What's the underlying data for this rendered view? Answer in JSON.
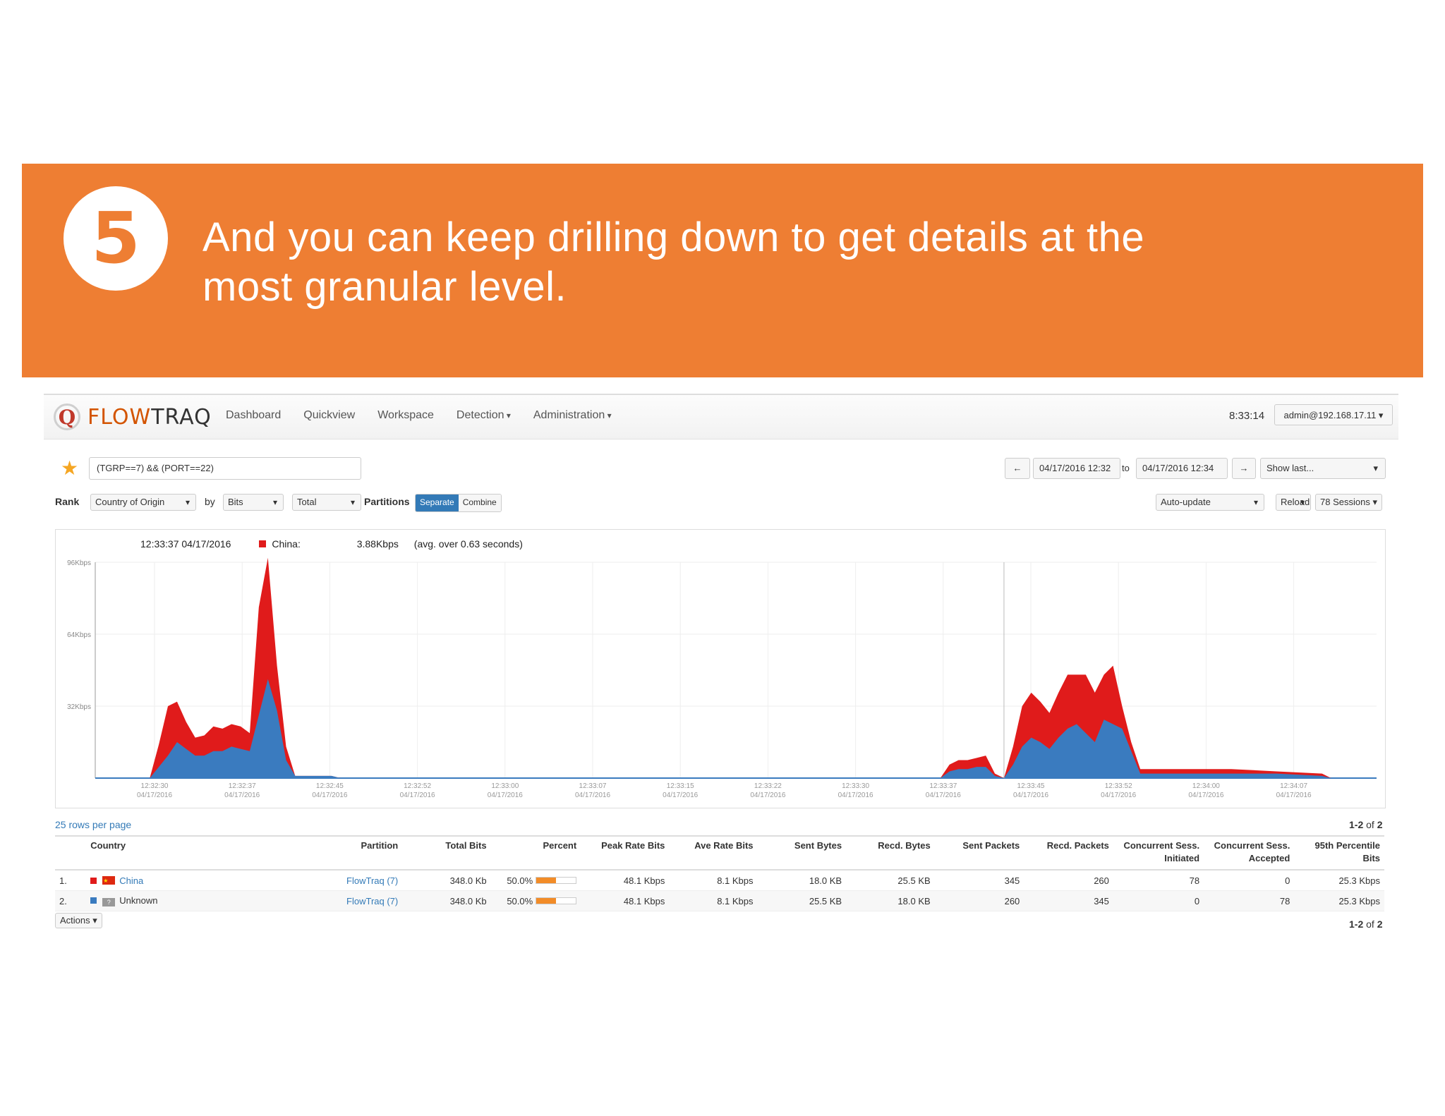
{
  "banner": {
    "step": "5",
    "text": "And you can keep drilling down to get details at the most granular level."
  },
  "app": {
    "logo": {
      "initial": "Q",
      "name_part1": "FLOW",
      "name_part2": "TRAQ"
    },
    "nav": [
      "Dashboard",
      "Quickview",
      "Workspace",
      "Detection",
      "Administration"
    ],
    "clock": "8:33:14",
    "user": "admin@192.168.17.11"
  },
  "toolbar": {
    "query": "(TGRP==7) && (PORT==22)",
    "prev": "←",
    "next": "→",
    "from": "04/17/2016 12:32",
    "to_label": "to",
    "to": "04/17/2016 12:34",
    "show_last": "Show last...",
    "rank_label": "Rank",
    "rank_value": "Country of Origin",
    "by_label": "by",
    "by_value": "Bits",
    "total_value": "Total",
    "partitions_label": "Partitions",
    "separate": "Separate",
    "combine": "Combine",
    "autoupdate": "Auto-update",
    "reload": "Reload",
    "sessions": "78 Sessions"
  },
  "chart_data": {
    "type": "area",
    "stacked": true,
    "tooltip": {
      "time": "12:33:37 04/17/2016",
      "series": "China:",
      "value": "3.88Kbps",
      "note": "(avg. over 0.63 seconds)"
    },
    "y_ticks": [
      "96Kbps",
      "64Kbps",
      "32Kbps"
    ],
    "y_tick_values": [
      96,
      64,
      32
    ],
    "ylim": [
      0,
      96
    ],
    "x_ticks": [
      [
        "12:32:30",
        "04/17/2016"
      ],
      [
        "12:32:37",
        "04/17/2016"
      ],
      [
        "12:32:45",
        "04/17/2016"
      ],
      [
        "12:32:52",
        "04/17/2016"
      ],
      [
        "12:33:00",
        "04/17/2016"
      ],
      [
        "12:33:07",
        "04/17/2016"
      ],
      [
        "12:33:15",
        "04/17/2016"
      ],
      [
        "12:33:22",
        "04/17/2016"
      ],
      [
        "12:33:30",
        "04/17/2016"
      ],
      [
        "12:33:37",
        "04/17/2016"
      ],
      [
        "12:33:45",
        "04/17/2016"
      ],
      [
        "12:33:52",
        "04/17/2016"
      ],
      [
        "12:34:00",
        "04/17/2016"
      ],
      [
        "12:34:07",
        "04/17/2016"
      ]
    ],
    "x_seconds": [
      0,
      2,
      4,
      6,
      7,
      8,
      9,
      10,
      11,
      12,
      13,
      14,
      15,
      16,
      17,
      18,
      19,
      20,
      21,
      22,
      23,
      24,
      25,
      26,
      27,
      28,
      29,
      30,
      40,
      60,
      80,
      90,
      93,
      94,
      95,
      96,
      97,
      98,
      99,
      100,
      101,
      102,
      103,
      104,
      105,
      106,
      107,
      108,
      109,
      110,
      111,
      112,
      113,
      114,
      115,
      116,
      117,
      118,
      120,
      123,
      125,
      130,
      135,
      136,
      140,
      141
    ],
    "series": [
      {
        "name": "Unknown",
        "color": "#3a7bbf",
        "values": [
          0,
          0,
          0,
          0,
          5,
          10,
          16,
          13,
          10,
          10,
          12,
          12,
          14,
          13,
          12,
          28,
          44,
          30,
          8,
          1,
          1,
          1,
          1,
          1,
          0,
          0,
          0,
          0,
          0,
          0,
          0,
          0,
          0,
          3,
          4,
          4,
          5,
          5,
          1,
          0,
          6,
          14,
          18,
          16,
          13,
          18,
          22,
          24,
          20,
          16,
          26,
          24,
          22,
          12,
          2,
          2,
          2,
          2,
          2,
          2,
          2,
          2,
          1,
          0,
          0,
          0
        ]
      },
      {
        "name": "China",
        "color": "#e01b1b",
        "values": [
          0,
          0,
          0,
          0,
          10,
          22,
          18,
          12,
          8,
          9,
          11,
          10,
          10,
          10,
          8,
          48,
          54,
          20,
          6,
          0,
          0,
          0,
          0,
          0,
          0,
          0,
          0,
          0,
          0,
          0,
          0,
          0,
          0,
          3,
          4,
          4,
          4,
          5,
          1,
          0,
          8,
          18,
          20,
          18,
          16,
          20,
          24,
          22,
          26,
          22,
          20,
          26,
          10,
          4,
          2,
          2,
          2,
          2,
          2,
          2,
          2,
          1,
          1,
          0,
          0,
          0
        ]
      }
    ]
  },
  "table": {
    "rows_per_page": "25 rows per page",
    "count": "1-2 of 2",
    "headers": [
      "",
      "Country",
      "Partition",
      "Total Bits",
      "Percent",
      "Peak Rate Bits",
      "Ave Rate Bits",
      "Sent Bytes",
      "Recd. Bytes",
      "Sent Packets",
      "Recd. Packets",
      "Concurrent Sess. Initiated",
      "Concurrent Sess. Accepted",
      "95th Percentile Bits"
    ],
    "rows": [
      {
        "idx": "1.",
        "color": "#e01b1b",
        "flag": "cn",
        "country": "China",
        "partition": "FlowTraq (7)",
        "total_bits": "348.0 Kb",
        "percent": "50.0%",
        "percent_value": 50,
        "peak": "48.1 Kbps",
        "ave": "8.1 Kbps",
        "sent_bytes": "18.0 KB",
        "recd_bytes": "25.5 KB",
        "sent_packets": "345",
        "recd_packets": "260",
        "cs_init": "78",
        "cs_acc": "0",
        "p95": "25.3 Kbps"
      },
      {
        "idx": "2.",
        "color": "#3a7bbf",
        "flag": "unknown",
        "country": "Unknown",
        "partition": "FlowTraq (7)",
        "total_bits": "348.0 Kb",
        "percent": "50.0%",
        "percent_value": 50,
        "peak": "48.1 Kbps",
        "ave": "8.1 Kbps",
        "sent_bytes": "25.5 KB",
        "recd_bytes": "18.0 KB",
        "sent_packets": "260",
        "recd_packets": "345",
        "cs_init": "0",
        "cs_acc": "78",
        "p95": "25.3 Kbps"
      }
    ],
    "actions": "Actions"
  }
}
